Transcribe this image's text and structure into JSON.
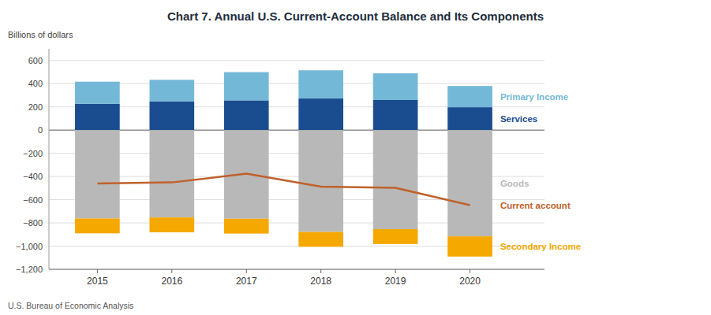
{
  "chart_data": {
    "type": "bar",
    "stacked": true,
    "title": "Chart 7. Annual U.S. Current-Account Balance and Its Components",
    "ylabel": "Billions of dollars",
    "footnote": "U.S. Bureau of Economic Analysis",
    "x": [
      2015,
      2016,
      2017,
      2018,
      2019,
      2020
    ],
    "xlim": [
      2014.35,
      2021
    ],
    "xticks": [
      2015,
      2016,
      2017,
      2018,
      2019,
      2020
    ],
    "ylim": [
      -1200,
      700
    ],
    "yticks": [
      {
        "value": -1200,
        "label": "−1,200"
      },
      {
        "value": -1000,
        "label": "−1,000"
      },
      {
        "value": -800,
        "label": "−800"
      },
      {
        "value": -600,
        "label": "−600"
      },
      {
        "value": -400,
        "label": "−400"
      },
      {
        "value": -200,
        "label": "−200"
      },
      0,
      200,
      400,
      600
    ],
    "grid": true,
    "series": [
      {
        "name": "Services",
        "type": "bar",
        "color": "#1a4d8f",
        "values": [
          227,
          248,
          256,
          272,
          259,
          197
        ]
      },
      {
        "name": "Primary Income",
        "type": "bar",
        "color": "#74b8d8",
        "values": [
          190,
          185,
          243,
          243,
          230,
          183
        ]
      },
      {
        "name": "Goods",
        "type": "bar",
        "color": "#b8b8b8",
        "values": [
          -762,
          -753,
          -764,
          -878,
          -854,
          -916
        ]
      },
      {
        "name": "Secondary Income",
        "type": "bar",
        "color": "#f5a800",
        "values": [
          -128,
          -128,
          -128,
          -128,
          -128,
          -174
        ]
      },
      {
        "name": "Current account",
        "type": "line",
        "color": "#c0612b",
        "values": [
          -460,
          -451,
          -376,
          -488,
          -498,
          -647
        ]
      }
    ]
  }
}
